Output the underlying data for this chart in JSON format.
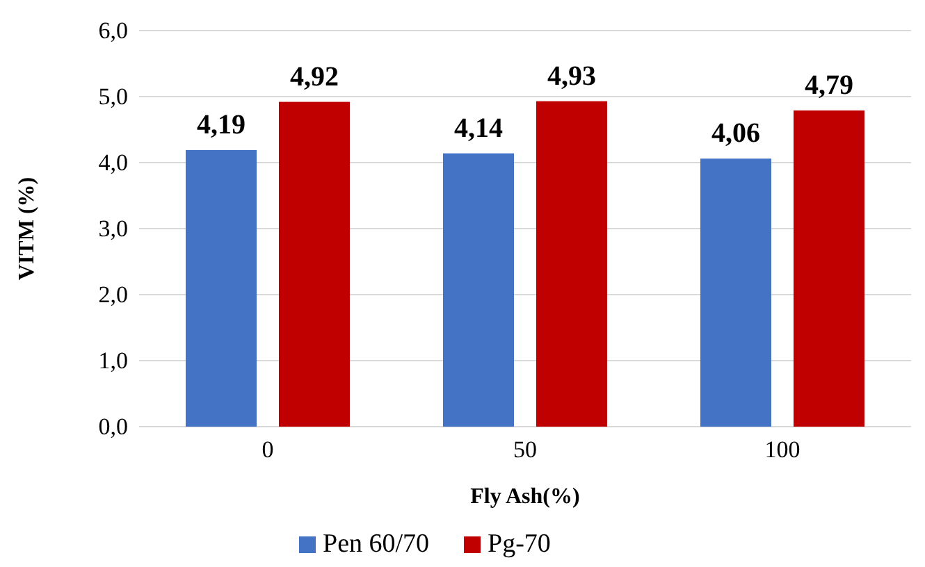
{
  "chart_data": {
    "type": "bar",
    "xlabel": "Fly Ash(%)",
    "ylabel": "VITM (%)",
    "categories": [
      "0",
      "50",
      "100"
    ],
    "series": [
      {
        "name": "Pen 60/70",
        "color": "#4472c4",
        "values": [
          4.19,
          4.14,
          4.06
        ],
        "value_labels": [
          "4,19",
          "4,14",
          "4,06"
        ]
      },
      {
        "name": "Pg-70",
        "color": "#c00000",
        "values": [
          4.92,
          4.93,
          4.79
        ],
        "value_labels": [
          "4,92",
          "4,93",
          "4,79"
        ]
      }
    ],
    "ylim": [
      0,
      6
    ],
    "yticks": [
      {
        "value": 0,
        "label": "0,0"
      },
      {
        "value": 1,
        "label": "1,0"
      },
      {
        "value": 2,
        "label": "2,0"
      },
      {
        "value": 3,
        "label": "3,0"
      },
      {
        "value": 4,
        "label": "4,0"
      },
      {
        "value": 5,
        "label": "5,0"
      },
      {
        "value": 6,
        "label": "6,0"
      }
    ],
    "grid": "y",
    "legend": "bottom"
  }
}
